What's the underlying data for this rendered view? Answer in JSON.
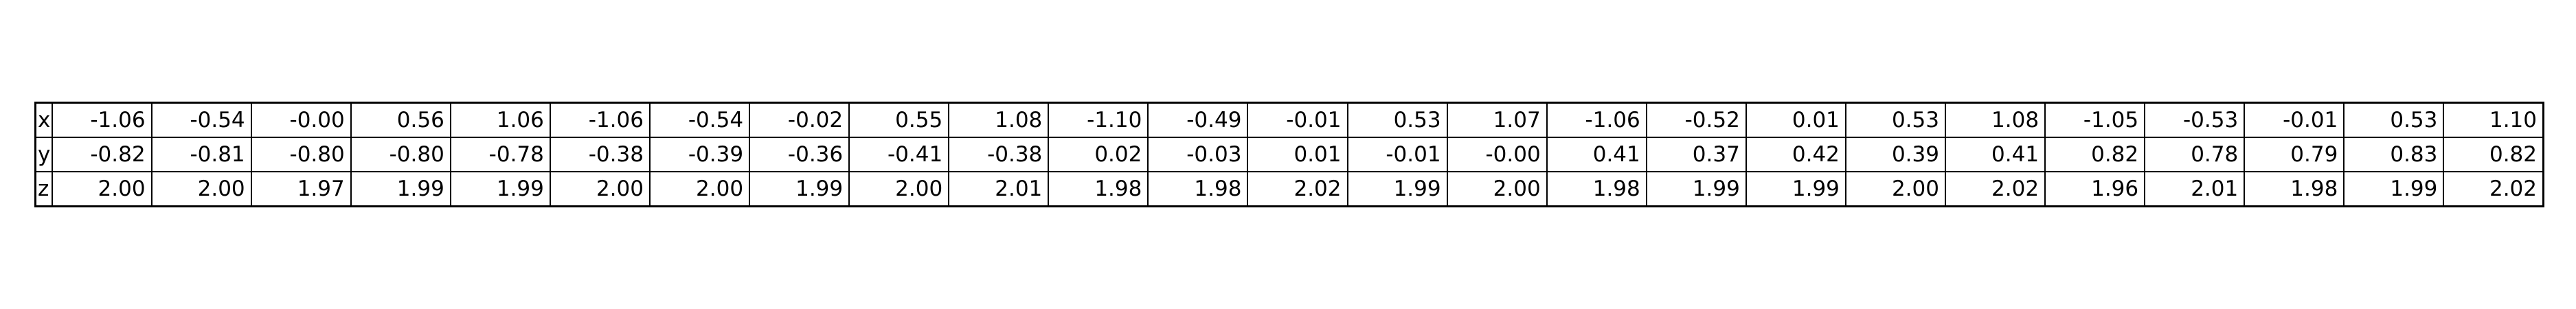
{
  "chart_data": {
    "type": "table",
    "row_labels": [
      "x",
      "y",
      "z"
    ],
    "rows": [
      [
        "-1.06",
        "-0.54",
        "-0.00",
        "0.56",
        "1.06",
        "-1.06",
        "-0.54",
        "-0.02",
        "0.55",
        "1.08",
        "-1.10",
        "-0.49",
        "-0.01",
        "0.53",
        "1.07",
        "-1.06",
        "-0.52",
        "0.01",
        "0.53",
        "1.08",
        "-1.05",
        "-0.53",
        "-0.01",
        "0.53",
        "1.10"
      ],
      [
        "-0.82",
        "-0.81",
        "-0.80",
        "-0.80",
        "-0.78",
        "-0.38",
        "-0.39",
        "-0.36",
        "-0.41",
        "-0.38",
        "0.02",
        "-0.03",
        "0.01",
        "-0.01",
        "-0.00",
        "0.41",
        "0.37",
        "0.42",
        "0.39",
        "0.41",
        "0.82",
        "0.78",
        "0.79",
        "0.83",
        "0.82"
      ],
      [
        "2.00",
        "2.00",
        "1.97",
        "1.99",
        "1.99",
        "2.00",
        "2.00",
        "1.99",
        "2.00",
        "2.01",
        "1.98",
        "1.98",
        "2.02",
        "1.99",
        "2.00",
        "1.98",
        "1.99",
        "1.99",
        "2.00",
        "2.02",
        "1.96",
        "2.01",
        "1.98",
        "1.99",
        "2.02"
      ]
    ]
  }
}
